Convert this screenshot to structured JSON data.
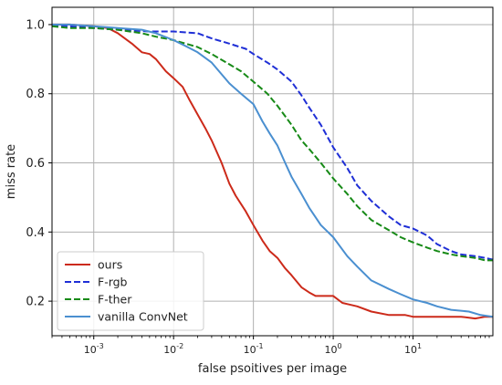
{
  "chart_data": {
    "type": "line",
    "xlabel": "false psoitives per image",
    "ylabel": "miss rate",
    "xscale": "log",
    "xlim": [
      0.0003,
      100
    ],
    "ylim": [
      0.1,
      1.05
    ],
    "xticks": [
      {
        "value": 0.001,
        "base": "10",
        "exp": "-3"
      },
      {
        "value": 0.01,
        "base": "10",
        "exp": "-2"
      },
      {
        "value": 0.1,
        "base": "10",
        "exp": "-1"
      },
      {
        "value": 1,
        "base": "10",
        "exp": "0"
      },
      {
        "value": 10,
        "base": "10",
        "exp": "1"
      }
    ],
    "yticks": [
      "0.2",
      "0.4",
      "0.6",
      "0.8",
      "1.0"
    ],
    "grid": true,
    "legend_position": "lower-left",
    "series": [
      {
        "name": "ours",
        "color": "#cc2a1a",
        "dash": "solid",
        "points": [
          [
            0.0003,
            1.0
          ],
          [
            0.0005,
            1.0
          ],
          [
            0.001,
            0.995
          ],
          [
            0.0015,
            0.99
          ],
          [
            0.002,
            0.975
          ],
          [
            0.003,
            0.945
          ],
          [
            0.004,
            0.92
          ],
          [
            0.005,
            0.915
          ],
          [
            0.006,
            0.9
          ],
          [
            0.008,
            0.865
          ],
          [
            0.01,
            0.845
          ],
          [
            0.013,
            0.82
          ],
          [
            0.016,
            0.78
          ],
          [
            0.02,
            0.74
          ],
          [
            0.025,
            0.7
          ],
          [
            0.03,
            0.665
          ],
          [
            0.04,
            0.6
          ],
          [
            0.05,
            0.54
          ],
          [
            0.06,
            0.505
          ],
          [
            0.08,
            0.46
          ],
          [
            0.1,
            0.42
          ],
          [
            0.13,
            0.375
          ],
          [
            0.16,
            0.345
          ],
          [
            0.2,
            0.325
          ],
          [
            0.25,
            0.295
          ],
          [
            0.3,
            0.275
          ],
          [
            0.4,
            0.24
          ],
          [
            0.5,
            0.225
          ],
          [
            0.6,
            0.215
          ],
          [
            0.8,
            0.215
          ],
          [
            1.0,
            0.215
          ],
          [
            1.3,
            0.195
          ],
          [
            2.0,
            0.185
          ],
          [
            3.0,
            0.17
          ],
          [
            5.0,
            0.16
          ],
          [
            8.0,
            0.16
          ],
          [
            10,
            0.155
          ],
          [
            20,
            0.155
          ],
          [
            40,
            0.155
          ],
          [
            60,
            0.15
          ],
          [
            80,
            0.155
          ],
          [
            100,
            0.155
          ]
        ]
      },
      {
        "name": "F-rgb",
        "color": "#1f2fd6",
        "dash": "dashed",
        "points": [
          [
            0.0003,
            1.0
          ],
          [
            0.0005,
            0.995
          ],
          [
            0.001,
            0.99
          ],
          [
            0.002,
            0.985
          ],
          [
            0.005,
            0.98
          ],
          [
            0.01,
            0.98
          ],
          [
            0.02,
            0.975
          ],
          [
            0.03,
            0.96
          ],
          [
            0.05,
            0.945
          ],
          [
            0.08,
            0.93
          ],
          [
            0.1,
            0.915
          ],
          [
            0.15,
            0.89
          ],
          [
            0.2,
            0.87
          ],
          [
            0.3,
            0.835
          ],
          [
            0.4,
            0.795
          ],
          [
            0.5,
            0.76
          ],
          [
            0.7,
            0.71
          ],
          [
            1.0,
            0.645
          ],
          [
            1.5,
            0.585
          ],
          [
            2.0,
            0.535
          ],
          [
            3.0,
            0.49
          ],
          [
            5.0,
            0.445
          ],
          [
            7.0,
            0.42
          ],
          [
            10,
            0.41
          ],
          [
            15,
            0.39
          ],
          [
            20,
            0.365
          ],
          [
            30,
            0.345
          ],
          [
            40,
            0.335
          ],
          [
            60,
            0.33
          ],
          [
            80,
            0.325
          ],
          [
            100,
            0.32
          ]
        ]
      },
      {
        "name": "F-ther",
        "color": "#178a17",
        "dash": "dashed",
        "points": [
          [
            0.0003,
            0.995
          ],
          [
            0.0005,
            0.99
          ],
          [
            0.001,
            0.99
          ],
          [
            0.002,
            0.985
          ],
          [
            0.004,
            0.975
          ],
          [
            0.006,
            0.965
          ],
          [
            0.01,
            0.955
          ],
          [
            0.02,
            0.935
          ],
          [
            0.03,
            0.915
          ],
          [
            0.05,
            0.885
          ],
          [
            0.07,
            0.865
          ],
          [
            0.1,
            0.835
          ],
          [
            0.15,
            0.8
          ],
          [
            0.2,
            0.765
          ],
          [
            0.3,
            0.71
          ],
          [
            0.4,
            0.665
          ],
          [
            0.5,
            0.64
          ],
          [
            0.7,
            0.6
          ],
          [
            1.0,
            0.555
          ],
          [
            1.5,
            0.51
          ],
          [
            2.0,
            0.475
          ],
          [
            3.0,
            0.435
          ],
          [
            5.0,
            0.405
          ],
          [
            7.0,
            0.385
          ],
          [
            10,
            0.37
          ],
          [
            15,
            0.355
          ],
          [
            20,
            0.345
          ],
          [
            30,
            0.335
          ],
          [
            40,
            0.33
          ],
          [
            60,
            0.325
          ],
          [
            80,
            0.318
          ],
          [
            100,
            0.318
          ]
        ]
      },
      {
        "name": "vanilla ConvNet",
        "color": "#4a8fd0",
        "dash": "solid",
        "points": [
          [
            0.0003,
            1.0
          ],
          [
            0.0005,
            1.0
          ],
          [
            0.001,
            0.995
          ],
          [
            0.002,
            0.99
          ],
          [
            0.004,
            0.985
          ],
          [
            0.006,
            0.975
          ],
          [
            0.01,
            0.955
          ],
          [
            0.015,
            0.935
          ],
          [
            0.02,
            0.92
          ],
          [
            0.03,
            0.89
          ],
          [
            0.05,
            0.83
          ],
          [
            0.07,
            0.8
          ],
          [
            0.1,
            0.77
          ],
          [
            0.13,
            0.72
          ],
          [
            0.16,
            0.685
          ],
          [
            0.2,
            0.65
          ],
          [
            0.25,
            0.6
          ],
          [
            0.3,
            0.56
          ],
          [
            0.4,
            0.51
          ],
          [
            0.5,
            0.47
          ],
          [
            0.7,
            0.42
          ],
          [
            1.0,
            0.385
          ],
          [
            1.5,
            0.33
          ],
          [
            2.0,
            0.3
          ],
          [
            3.0,
            0.26
          ],
          [
            5.0,
            0.235
          ],
          [
            7.0,
            0.22
          ],
          [
            10,
            0.205
          ],
          [
            15,
            0.195
          ],
          [
            20,
            0.185
          ],
          [
            30,
            0.175
          ],
          [
            50,
            0.17
          ],
          [
            70,
            0.16
          ],
          [
            100,
            0.155
          ]
        ]
      }
    ]
  }
}
